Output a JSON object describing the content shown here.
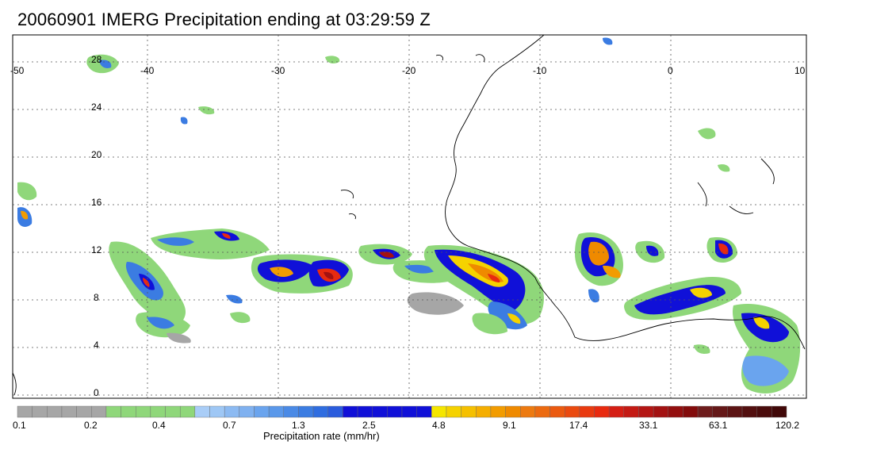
{
  "title": "20060901 IMERG Precipitation ending at 03:29:59 Z",
  "map": {
    "lon_labels": [
      "-50",
      "-40",
      "-30",
      "-20",
      "-10",
      "0",
      "10"
    ],
    "lat_labels": [
      "28",
      "24",
      "20",
      "16",
      "12",
      "8",
      "4",
      "0"
    ],
    "grid": true
  },
  "colorbar": {
    "title": "Precipitation rate (mm/hr)",
    "tick_labels": [
      "0.1",
      "0.2",
      "0.4",
      "0.7",
      "1.3",
      "2.5",
      "4.8",
      "9.1",
      "17.4",
      "33.1",
      "63.1",
      "120.2"
    ],
    "colors": [
      "#a6a6a6",
      "#a6a6a6",
      "#a6a6a6",
      "#a6a6a6",
      "#a6a6a6",
      "#a6a6a6",
      "#8fd77a",
      "#8fd77a",
      "#8fd77a",
      "#8fd77a",
      "#8fd77a",
      "#8fd77a",
      "#a9cdf7",
      "#9ec7f5",
      "#8cbaf2",
      "#7fb1f0",
      "#6aa4ee",
      "#5a98ea",
      "#4a8ae6",
      "#3b7ce2",
      "#2f6de0",
      "#2a5cdd",
      "#1010d8",
      "#1010d8",
      "#1010d8",
      "#1010d8",
      "#1010d8",
      "#1010d8",
      "#f5e600",
      "#f5d200",
      "#f5c000",
      "#f5ae00",
      "#f29c00",
      "#ef8a00",
      "#ed7a10",
      "#ec6a10",
      "#eb5a10",
      "#ea4a10",
      "#e93a10",
      "#e82a10",
      "#d51e14",
      "#c41a14",
      "#b41614",
      "#a31212",
      "#930f0f",
      "#830c0c",
      "#6e1c1c",
      "#651818",
      "#5c1414",
      "#531010",
      "#4a0c0c",
      "#410808"
    ]
  }
}
